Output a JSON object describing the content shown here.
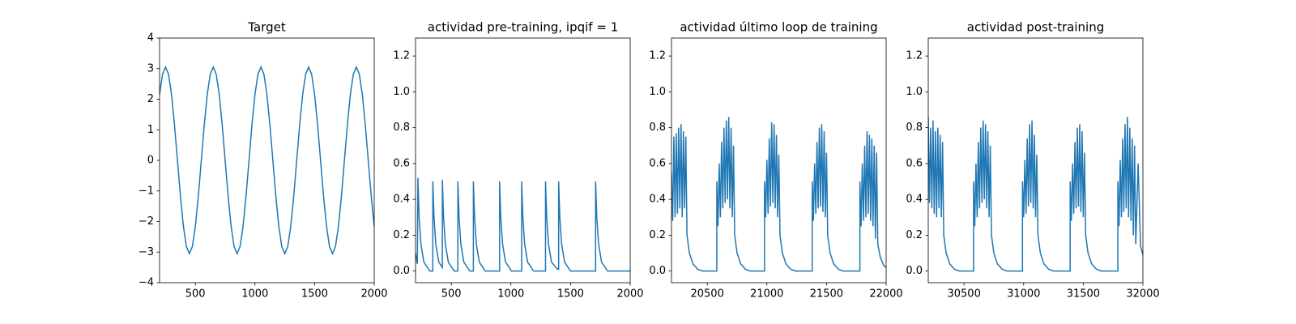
{
  "chart_data": [
    {
      "type": "line",
      "title": "Target",
      "color": "#1f77b4",
      "x": [
        200,
        225,
        250,
        275,
        300,
        325,
        350,
        375,
        400,
        425,
        450,
        475,
        500,
        525,
        550,
        575,
        600,
        625,
        650,
        675,
        700,
        725,
        750,
        775,
        800,
        825,
        850,
        875,
        900,
        925,
        950,
        975,
        1000,
        1025,
        1050,
        1075,
        1100,
        1125,
        1150,
        1175,
        1200,
        1225,
        1250,
        1275,
        1300,
        1325,
        1350,
        1375,
        1400,
        1425,
        1450,
        1475,
        1500,
        1525,
        1550,
        1575,
        1600,
        1625,
        1650,
        1675,
        1700,
        1725,
        1750,
        1775,
        1800,
        1825,
        1850,
        1875,
        1900,
        1925,
        1950,
        1975,
        2000
      ],
      "values": [
        2.16,
        2.82,
        3.05,
        2.82,
        2.16,
        1.17,
        0,
        -1.17,
        -2.16,
        -2.82,
        -3.05,
        -2.82,
        -2.16,
        -1.17,
        0,
        1.17,
        2.16,
        2.82,
        3.05,
        2.82,
        2.16,
        1.17,
        0,
        -1.17,
        -2.16,
        -2.82,
        -3.05,
        -2.82,
        -2.16,
        -1.17,
        0,
        1.17,
        2.16,
        2.82,
        3.05,
        2.82,
        2.16,
        1.17,
        0,
        -1.17,
        -2.16,
        -2.82,
        -3.05,
        -2.82,
        -2.16,
        -1.17,
        0,
        1.17,
        2.16,
        2.82,
        3.05,
        2.82,
        2.16,
        1.17,
        0,
        -1.17,
        -2.16,
        -2.82,
        -3.05,
        -2.82,
        -2.16,
        -1.17,
        0,
        1.17,
        2.16,
        2.82,
        3.05,
        2.82,
        2.16,
        1.17,
        0,
        -1.17,
        -2.16
      ],
      "xlim": [
        200,
        2000
      ],
      "xticks": [
        500,
        1000,
        1500,
        2000
      ],
      "ylim": [
        -4,
        4
      ],
      "yticks": [
        {
          "value": -4,
          "label": "−4"
        },
        {
          "value": -3,
          "label": "−3"
        },
        {
          "value": -2,
          "label": "−2"
        },
        {
          "value": -1,
          "label": "−1"
        },
        0,
        1,
        2,
        3,
        4
      ]
    },
    {
      "type": "line",
      "title": "actividad pre-training, ipqif = 1",
      "color": "#1f77b4",
      "x": [
        200,
        215,
        220,
        230,
        245,
        270,
        320,
        345,
        345,
        355,
        370,
        395,
        425,
        425,
        435,
        450,
        475,
        525,
        555,
        555,
        565,
        580,
        605,
        655,
        685,
        685,
        695,
        710,
        735,
        785,
        905,
        905,
        915,
        930,
        955,
        1005,
        1090,
        1090,
        1100,
        1115,
        1140,
        1190,
        1290,
        1290,
        1300,
        1315,
        1340,
        1390,
        1400,
        1400,
        1410,
        1425,
        1450,
        1500,
        1710,
        1710,
        1720,
        1735,
        1760,
        1810,
        2000
      ],
      "values": [
        0.1,
        0.04,
        0.52,
        0.3,
        0.15,
        0.05,
        0,
        0,
        0.5,
        0.3,
        0.15,
        0.05,
        0.02,
        0.51,
        0.3,
        0.15,
        0.05,
        0,
        0,
        0.5,
        0.3,
        0.15,
        0.05,
        0,
        0,
        0.5,
        0.3,
        0.15,
        0.05,
        0,
        0,
        0.5,
        0.3,
        0.15,
        0.05,
        0,
        0,
        0.5,
        0.3,
        0.15,
        0.05,
        0,
        0,
        0.5,
        0.3,
        0.15,
        0.05,
        0.01,
        0.01,
        0.5,
        0.3,
        0.15,
        0.05,
        0,
        0,
        0.5,
        0.3,
        0.15,
        0.05,
        0,
        0
      ],
      "xlim": [
        200,
        2000
      ],
      "xticks": [
        500,
        1000,
        1500,
        2000
      ],
      "ylim": [
        -0.065,
        1.3
      ],
      "yticks": [
        {
          "value": 0,
          "label": "0.0"
        },
        0.2,
        0.4,
        0.6,
        0.8,
        {
          "value": 1,
          "label": "1.0"
        },
        1.2
      ]
    },
    {
      "type": "line",
      "title": "actividad último loop de training",
      "color": "#1f77b4",
      "x": [
        20200,
        20210,
        20220,
        20230,
        20240,
        20250,
        20260,
        20270,
        20280,
        20290,
        20300,
        20310,
        20320,
        20330,
        20350,
        20380,
        20420,
        20460,
        20580,
        20580,
        20590,
        20600,
        20610,
        20620,
        20630,
        20640,
        20650,
        20660,
        20670,
        20680,
        20690,
        20700,
        20710,
        20720,
        20730,
        20750,
        20780,
        20820,
        20860,
        20980,
        20980,
        20990,
        21000,
        21010,
        21020,
        21030,
        21040,
        21050,
        21060,
        21070,
        21080,
        21090,
        21100,
        21110,
        21130,
        21160,
        21200,
        21240,
        21380,
        21380,
        21390,
        21400,
        21410,
        21420,
        21430,
        21440,
        21450,
        21460,
        21470,
        21480,
        21490,
        21500,
        21510,
        21530,
        21560,
        21600,
        21640,
        21780,
        21780,
        21790,
        21800,
        21810,
        21820,
        21830,
        21840,
        21850,
        21860,
        21870,
        21880,
        21890,
        21900,
        21910,
        21920,
        21930,
        21950,
        21980,
        22000
      ],
      "values": [
        0.55,
        0.28,
        0.75,
        0.3,
        0.77,
        0.32,
        0.8,
        0.35,
        0.82,
        0.3,
        0.78,
        0.35,
        0.75,
        0.2,
        0.1,
        0.04,
        0.01,
        0,
        0,
        0.5,
        0.25,
        0.6,
        0.3,
        0.72,
        0.35,
        0.8,
        0.38,
        0.84,
        0.4,
        0.86,
        0.35,
        0.8,
        0.3,
        0.7,
        0.2,
        0.1,
        0.04,
        0.01,
        0,
        0,
        0.5,
        0.3,
        0.62,
        0.32,
        0.74,
        0.36,
        0.83,
        0.38,
        0.82,
        0.35,
        0.76,
        0.3,
        0.65,
        0.2,
        0.1,
        0.04,
        0.01,
        0,
        0,
        0.5,
        0.28,
        0.6,
        0.32,
        0.72,
        0.35,
        0.8,
        0.36,
        0.82,
        0.33,
        0.78,
        0.3,
        0.66,
        0.2,
        0.1,
        0.04,
        0.01,
        0,
        0,
        0.5,
        0.25,
        0.6,
        0.28,
        0.7,
        0.3,
        0.78,
        0.32,
        0.76,
        0.28,
        0.74,
        0.25,
        0.7,
        0.18,
        0.66,
        0.15,
        0.08,
        0.03,
        0.02
      ],
      "xlim": [
        20200,
        22000
      ],
      "xticks": [
        20500,
        21000,
        21500,
        22000
      ],
      "ylim": [
        -0.065,
        1.3
      ],
      "yticks": [
        {
          "value": 0,
          "label": "0.0"
        },
        0.2,
        0.4,
        0.6,
        0.8,
        {
          "value": 1,
          "label": "1.0"
        },
        1.2
      ]
    },
    {
      "type": "line",
      "title": "actividad post-training",
      "color": "#1f77b4",
      "x": [
        30200,
        30210,
        30220,
        30230,
        30240,
        30250,
        30260,
        30270,
        30280,
        30290,
        30300,
        30310,
        30320,
        30330,
        30350,
        30380,
        30420,
        30460,
        30580,
        30580,
        30590,
        30600,
        30610,
        30620,
        30630,
        30640,
        30650,
        30660,
        30670,
        30680,
        30690,
        30700,
        30710,
        30720,
        30730,
        30750,
        30780,
        30820,
        30860,
        30990,
        30990,
        31000,
        31010,
        31020,
        31030,
        31040,
        31050,
        31060,
        31070,
        31080,
        31090,
        31100,
        31110,
        31120,
        31140,
        31170,
        31210,
        31250,
        31390,
        31390,
        31400,
        31410,
        31420,
        31430,
        31440,
        31450,
        31460,
        31470,
        31480,
        31490,
        31500,
        31510,
        31520,
        31540,
        31570,
        31610,
        31650,
        31790,
        31790,
        31800,
        31810,
        31820,
        31830,
        31840,
        31850,
        31860,
        31870,
        31880,
        31890,
        31900,
        31910,
        31920,
        31930,
        31940,
        31960,
        31980,
        32000
      ],
      "values": [
        0.86,
        0.38,
        0.8,
        0.35,
        0.84,
        0.32,
        0.78,
        0.3,
        0.8,
        0.35,
        0.76,
        0.3,
        0.72,
        0.2,
        0.1,
        0.04,
        0.01,
        0,
        0,
        0.5,
        0.25,
        0.6,
        0.3,
        0.72,
        0.35,
        0.8,
        0.38,
        0.84,
        0.4,
        0.82,
        0.35,
        0.78,
        0.3,
        0.7,
        0.2,
        0.1,
        0.04,
        0.01,
        0,
        0,
        0.5,
        0.3,
        0.62,
        0.32,
        0.74,
        0.36,
        0.82,
        0.38,
        0.84,
        0.35,
        0.76,
        0.3,
        0.65,
        0.2,
        0.1,
        0.04,
        0.01,
        0,
        0,
        0.5,
        0.28,
        0.6,
        0.32,
        0.72,
        0.35,
        0.8,
        0.36,
        0.82,
        0.33,
        0.78,
        0.3,
        0.66,
        0.2,
        0.1,
        0.04,
        0.01,
        0,
        0,
        0.5,
        0.25,
        0.62,
        0.3,
        0.74,
        0.33,
        0.82,
        0.35,
        0.86,
        0.3,
        0.8,
        0.28,
        0.74,
        0.2,
        0.7,
        0.15,
        0.6,
        0.14,
        0.09
      ],
      "xlim": [
        30200,
        32000
      ],
      "xticks": [
        30500,
        31000,
        31500,
        32000
      ],
      "ylim": [
        -0.065,
        1.3
      ],
      "yticks": [
        {
          "value": 0,
          "label": "0.0"
        },
        0.2,
        0.4,
        0.6,
        0.8,
        {
          "value": 1,
          "label": "1.0"
        },
        1.2
      ]
    }
  ]
}
